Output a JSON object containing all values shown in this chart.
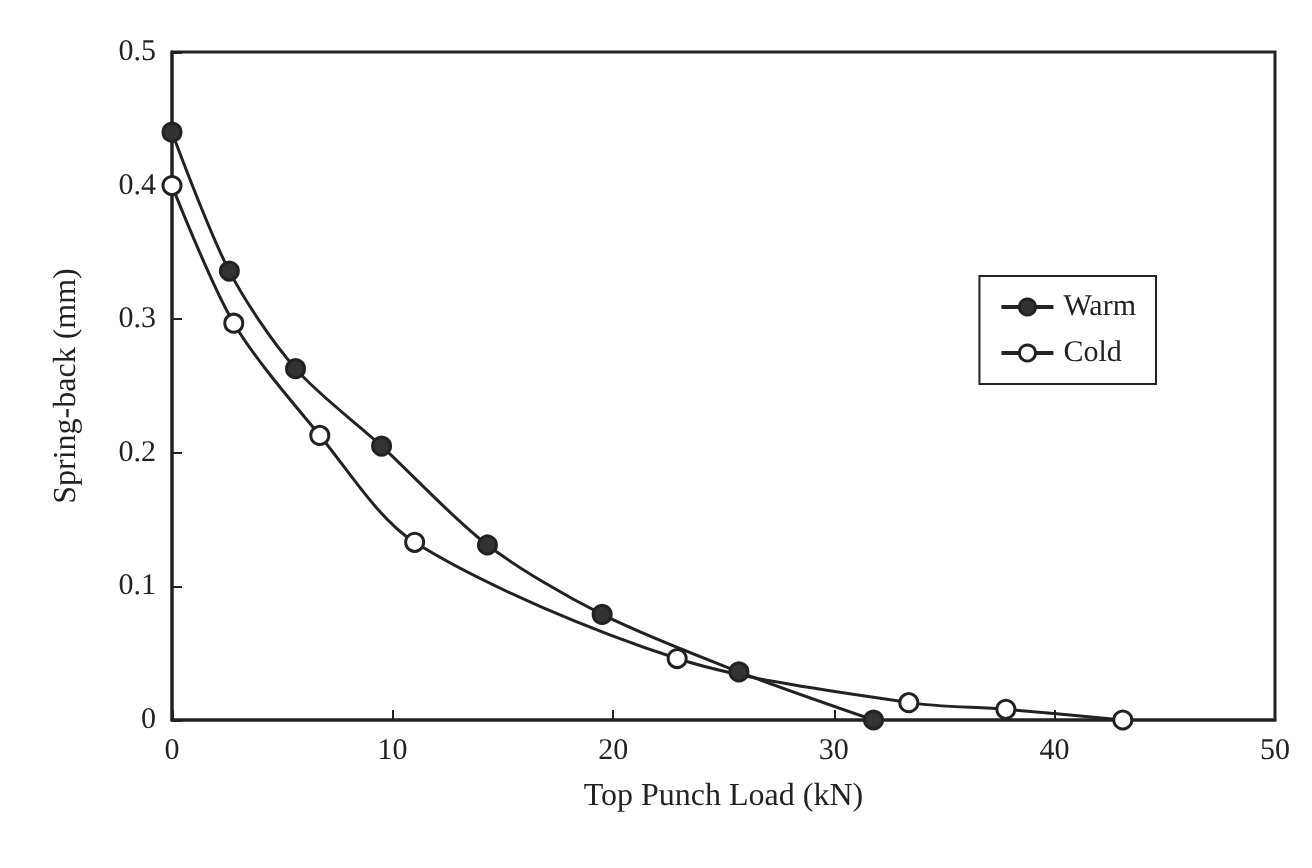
{
  "chart_data": {
    "type": "line",
    "xlabel": "Top Punch Load (kN)",
    "ylabel": "Spring-back (mm)",
    "xlim": [
      0,
      50
    ],
    "xticks": [
      0,
      10,
      20,
      30,
      40,
      50
    ],
    "ylim": [
      0,
      0.5
    ],
    "yticks": [
      0,
      0.1,
      0.2,
      0.3,
      0.4,
      0.5
    ],
    "grid": false,
    "legend": "right",
    "marker": "circle",
    "line_style": "solid",
    "series": [
      {
        "name": "Warm",
        "color": "#333333",
        "x": [
          0,
          2.6,
          5.6,
          9.5,
          14.3,
          19.5,
          25.7,
          31.8
        ],
        "values": [
          0.44,
          0.336,
          0.263,
          0.205,
          0.131,
          0.079,
          0.036,
          0
        ]
      },
      {
        "name": "Cold",
        "color": "#ffffff",
        "x": [
          0,
          2.8,
          6.7,
          11.0,
          22.9,
          33.4,
          37.8,
          43.1
        ],
        "values": [
          0.4,
          0.297,
          0.213,
          0.133,
          0.046,
          0.013,
          0.008,
          0
        ]
      }
    ]
  }
}
